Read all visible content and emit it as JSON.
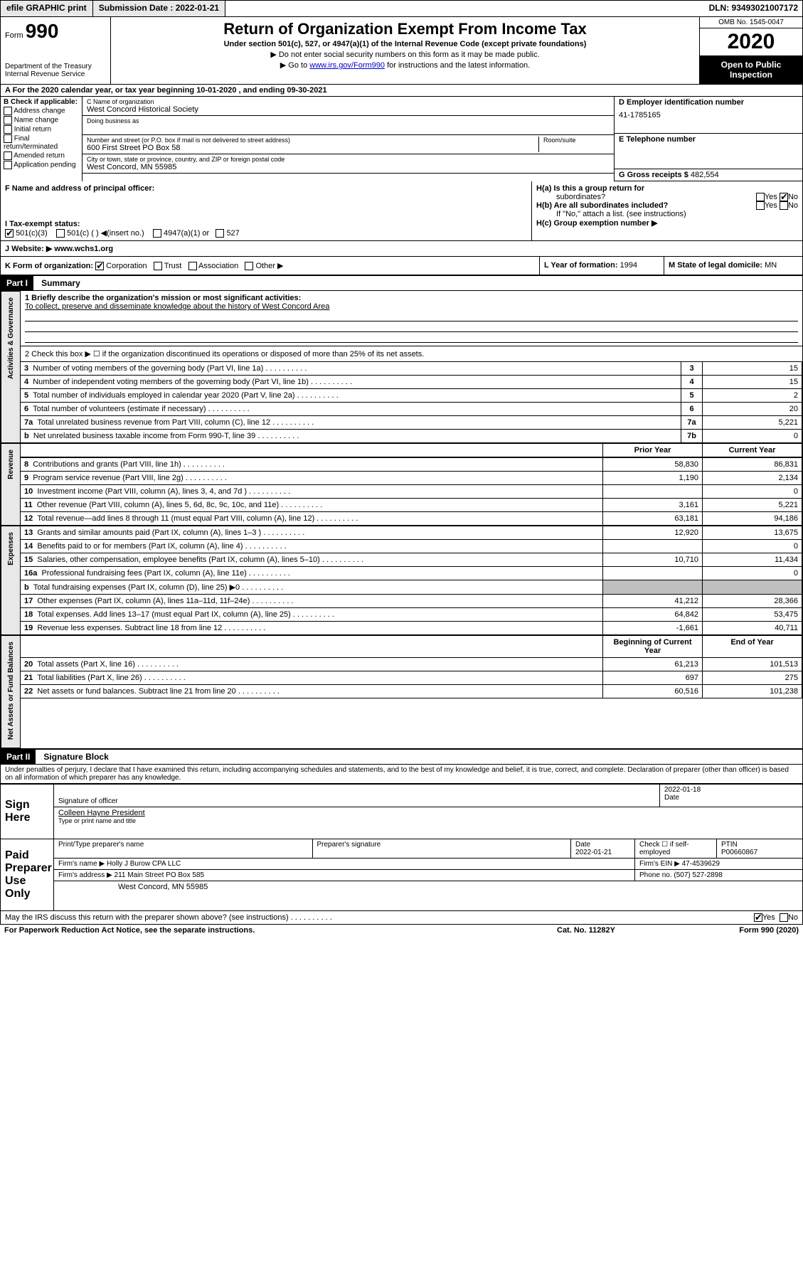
{
  "topbar": {
    "efile": "efile GRAPHIC print",
    "submission_label": "Submission Date : 2022-01-21",
    "dln": "DLN: 93493021007172"
  },
  "header": {
    "form_word": "Form",
    "form_num": "990",
    "dept1": "Department of the Treasury",
    "dept2": "Internal Revenue Service",
    "title": "Return of Organization Exempt From Income Tax",
    "subtitle": "Under section 501(c), 527, or 4947(a)(1) of the Internal Revenue Code (except private foundations)",
    "note1": "▶ Do not enter social security numbers on this form as it may be made public.",
    "note2_pre": "▶ Go to ",
    "note2_link": "www.irs.gov/Form990",
    "note2_post": " for instructions and the latest information.",
    "omb": "OMB No. 1545-0047",
    "year": "2020",
    "open1": "Open to Public",
    "open2": "Inspection"
  },
  "rowA": "A For the 2020 calendar year, or tax year beginning 10-01-2020    , and ending 09-30-2021",
  "boxB": {
    "title": "B Check if applicable:",
    "opts": [
      "Address change",
      "Name change",
      "Initial return",
      "Final return/terminated",
      "Amended return",
      "Application pending"
    ]
  },
  "boxC": {
    "label_name": "C Name of organization",
    "name": "West Concord Historical Society",
    "dba_label": "Doing business as",
    "addr_label": "Number and street (or P.O. box if mail is not delivered to street address)",
    "room_label": "Room/suite",
    "addr": "600 First Street PO Box 58",
    "city_label": "City or town, state or province, country, and ZIP or foreign postal code",
    "city": "West Concord, MN  55985"
  },
  "boxD": {
    "label": "D Employer identification number",
    "val": "41-1785165"
  },
  "boxE": {
    "label": "E Telephone number"
  },
  "boxG": {
    "label": "G Gross receipts $",
    "val": "482,554"
  },
  "boxF": {
    "label": "F Name and address of principal officer:"
  },
  "boxH": {
    "ha": "H(a)  Is this a group return for",
    "ha2": "subordinates?",
    "hb": "H(b)  Are all subordinates included?",
    "hb_note": "If \"No,\" attach a list. (see instructions)",
    "hc": "H(c)  Group exemption number ▶",
    "yes": "Yes",
    "no": "No"
  },
  "boxI": {
    "label": "I  Tax-exempt status:",
    "o1": "501(c)(3)",
    "o2": "501(c) (  ) ◀(insert no.)",
    "o3": "4947(a)(1) or",
    "o4": "527"
  },
  "boxJ": {
    "label": "J   Website: ▶",
    "val": "www.wchs1.org"
  },
  "boxK": {
    "label": "K Form of organization:",
    "o1": "Corporation",
    "o2": "Trust",
    "o3": "Association",
    "o4": "Other ▶"
  },
  "boxL": {
    "label": "L Year of formation:",
    "val": "1994"
  },
  "boxM": {
    "label": "M State of legal domicile:",
    "val": "MN"
  },
  "parts": {
    "p1": "Part I",
    "p1t": "Summary",
    "p2": "Part II",
    "p2t": "Signature Block"
  },
  "summary": {
    "l1": "1   Briefly describe the organization's mission or most significant activities:",
    "l1_text": "To collect, preserve and disseminate knowledge about the history of West Concord Area",
    "l2": "2   Check this box ▶ ☐  if the organization discontinued its operations or disposed of more than 25% of its net assets.",
    "tabs": {
      "gov": "Activities & Governance",
      "rev": "Revenue",
      "exp": "Expenses",
      "net": "Net Assets or Fund Balances"
    },
    "rows_top": [
      {
        "n": "3",
        "t": "Number of voting members of the governing body (Part VI, line 1a)",
        "ln": "3",
        "v": "15"
      },
      {
        "n": "4",
        "t": "Number of independent voting members of the governing body (Part VI, line 1b)",
        "ln": "4",
        "v": "15"
      },
      {
        "n": "5",
        "t": "Total number of individuals employed in calendar year 2020 (Part V, line 2a)",
        "ln": "5",
        "v": "2"
      },
      {
        "n": "6",
        "t": "Total number of volunteers (estimate if necessary)",
        "ln": "6",
        "v": "20"
      },
      {
        "n": "7a",
        "t": "Total unrelated business revenue from Part VIII, column (C), line 12",
        "ln": "7a",
        "v": "5,221"
      },
      {
        "n": "b",
        "t": "Net unrelated business taxable income from Form 990-T, line 39",
        "ln": "7b",
        "v": "0"
      }
    ],
    "col_prior": "Prior Year",
    "col_current": "Current Year",
    "rows_rev": [
      {
        "n": "8",
        "t": "Contributions and grants (Part VIII, line 1h)",
        "p": "58,830",
        "c": "86,831"
      },
      {
        "n": "9",
        "t": "Program service revenue (Part VIII, line 2g)",
        "p": "1,190",
        "c": "2,134"
      },
      {
        "n": "10",
        "t": "Investment income (Part VIII, column (A), lines 3, 4, and 7d )",
        "p": "",
        "c": "0"
      },
      {
        "n": "11",
        "t": "Other revenue (Part VIII, column (A), lines 5, 6d, 8c, 9c, 10c, and 11e)",
        "p": "3,161",
        "c": "5,221"
      },
      {
        "n": "12",
        "t": "Total revenue—add lines 8 through 11 (must equal Part VIII, column (A), line 12)",
        "p": "63,181",
        "c": "94,186"
      }
    ],
    "rows_exp": [
      {
        "n": "13",
        "t": "Grants and similar amounts paid (Part IX, column (A), lines 1–3 )",
        "p": "12,920",
        "c": "13,675"
      },
      {
        "n": "14",
        "t": "Benefits paid to or for members (Part IX, column (A), line 4)",
        "p": "",
        "c": "0"
      },
      {
        "n": "15",
        "t": "Salaries, other compensation, employee benefits (Part IX, column (A), lines 5–10)",
        "p": "10,710",
        "c": "11,434"
      },
      {
        "n": "16a",
        "t": "Professional fundraising fees (Part IX, column (A), line 11e)",
        "p": "",
        "c": "0"
      },
      {
        "n": "b",
        "t": "Total fundraising expenses (Part IX, column (D), line 25) ▶0",
        "p": "shaded",
        "c": "shaded"
      },
      {
        "n": "17",
        "t": "Other expenses (Part IX, column (A), lines 11a–11d, 11f–24e)",
        "p": "41,212",
        "c": "28,366"
      },
      {
        "n": "18",
        "t": "Total expenses. Add lines 13–17 (must equal Part IX, column (A), line 25)",
        "p": "64,842",
        "c": "53,475"
      },
      {
        "n": "19",
        "t": "Revenue less expenses. Subtract line 18 from line 12",
        "p": "-1,661",
        "c": "40,711"
      }
    ],
    "col_begin": "Beginning of Current Year",
    "col_end": "End of Year",
    "rows_net": [
      {
        "n": "20",
        "t": "Total assets (Part X, line 16)",
        "p": "61,213",
        "c": "101,513"
      },
      {
        "n": "21",
        "t": "Total liabilities (Part X, line 26)",
        "p": "697",
        "c": "275"
      },
      {
        "n": "22",
        "t": "Net assets or fund balances. Subtract line 21 from line 20",
        "p": "60,516",
        "c": "101,238"
      }
    ]
  },
  "perjury": "Under penalties of perjury, I declare that I have examined this return, including accompanying schedules and statements, and to the best of my knowledge and belief, it is true, correct, and complete. Declaration of preparer (other than officer) is based on all information of which preparer has any knowledge.",
  "sign": {
    "label": "Sign Here",
    "sig_label": "Signature of officer",
    "date_label": "Date",
    "date": "2022-01-18",
    "name": "Colleen Hayne  President",
    "name_label": "Type or print name and title"
  },
  "preparer": {
    "label": "Paid Preparer Use Only",
    "h1": "Print/Type preparer's name",
    "h2": "Preparer's signature",
    "h3": "Date",
    "h3v": "2022-01-21",
    "h4": "Check ☐ if self-employed",
    "h5": "PTIN",
    "h5v": "P00660867",
    "firm_label": "Firm's name    ▶",
    "firm": "Holly J Burow CPA LLC",
    "ein_label": "Firm's EIN ▶",
    "ein": "47-4539629",
    "addr_label": "Firm's address ▶",
    "addr": "211 Main Street PO Box 585",
    "city": "West Concord, MN  55985",
    "phone_label": "Phone no.",
    "phone": "(507) 527-2898"
  },
  "discuss": {
    "q": "May the IRS discuss this return with the preparer shown above? (see instructions)",
    "yes": "Yes",
    "no": "No"
  },
  "footer": {
    "left": "For Paperwork Reduction Act Notice, see the separate instructions.",
    "mid": "Cat. No. 11282Y",
    "right": "Form 990 (2020)"
  }
}
